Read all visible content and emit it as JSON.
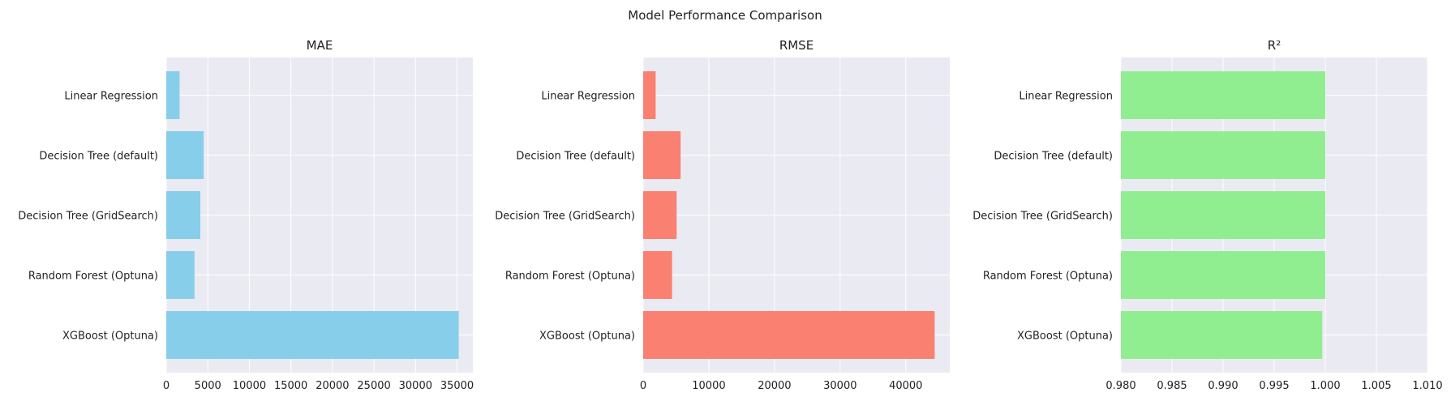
{
  "suptitle": "Model Performance Comparison",
  "chart_data": [
    {
      "type": "bar",
      "orientation": "horizontal",
      "title": "MAE",
      "categories": [
        "Linear Regression",
        "Decision Tree (default)",
        "Decision Tree (GridSearch)",
        "Random Forest (Optuna)",
        "XGBoost (Optuna)"
      ],
      "values": [
        1600,
        4500,
        4100,
        3400,
        35200
      ],
      "xlim": [
        0,
        36900
      ],
      "xticks": [
        0,
        5000,
        10000,
        15000,
        20000,
        25000,
        30000,
        35000
      ],
      "xtick_labels": [
        "0",
        "5000",
        "10000",
        "15000",
        "20000",
        "25000",
        "30000",
        "35000"
      ],
      "color": "#87ceeb",
      "grid": true
    },
    {
      "type": "bar",
      "orientation": "horizontal",
      "title": "RMSE",
      "categories": [
        "Linear Regression",
        "Decision Tree (default)",
        "Decision Tree (GridSearch)",
        "Random Forest (Optuna)",
        "XGBoost (Optuna)"
      ],
      "values": [
        1900,
        5700,
        5100,
        4400,
        44400
      ],
      "xlim": [
        0,
        46700
      ],
      "xticks": [
        0,
        10000,
        20000,
        30000,
        40000
      ],
      "xtick_labels": [
        "0",
        "10000",
        "20000",
        "30000",
        "40000"
      ],
      "color": "#fa8072",
      "grid": true
    },
    {
      "type": "bar",
      "orientation": "horizontal",
      "title": "R²",
      "categories": [
        "Linear Regression",
        "Decision Tree (default)",
        "Decision Tree (GridSearch)",
        "Random Forest (Optuna)",
        "XGBoost (Optuna)"
      ],
      "values": [
        1.0,
        1.0,
        1.0,
        1.0,
        0.9997
      ],
      "xlim": [
        0.98,
        1.01
      ],
      "xticks": [
        0.98,
        0.985,
        0.99,
        0.995,
        1.0,
        1.005,
        1.01
      ],
      "xtick_labels": [
        "0.980",
        "0.985",
        "0.990",
        "0.995",
        "1.000",
        "1.005",
        "1.010"
      ],
      "color": "#90ee90",
      "grid": true
    }
  ]
}
